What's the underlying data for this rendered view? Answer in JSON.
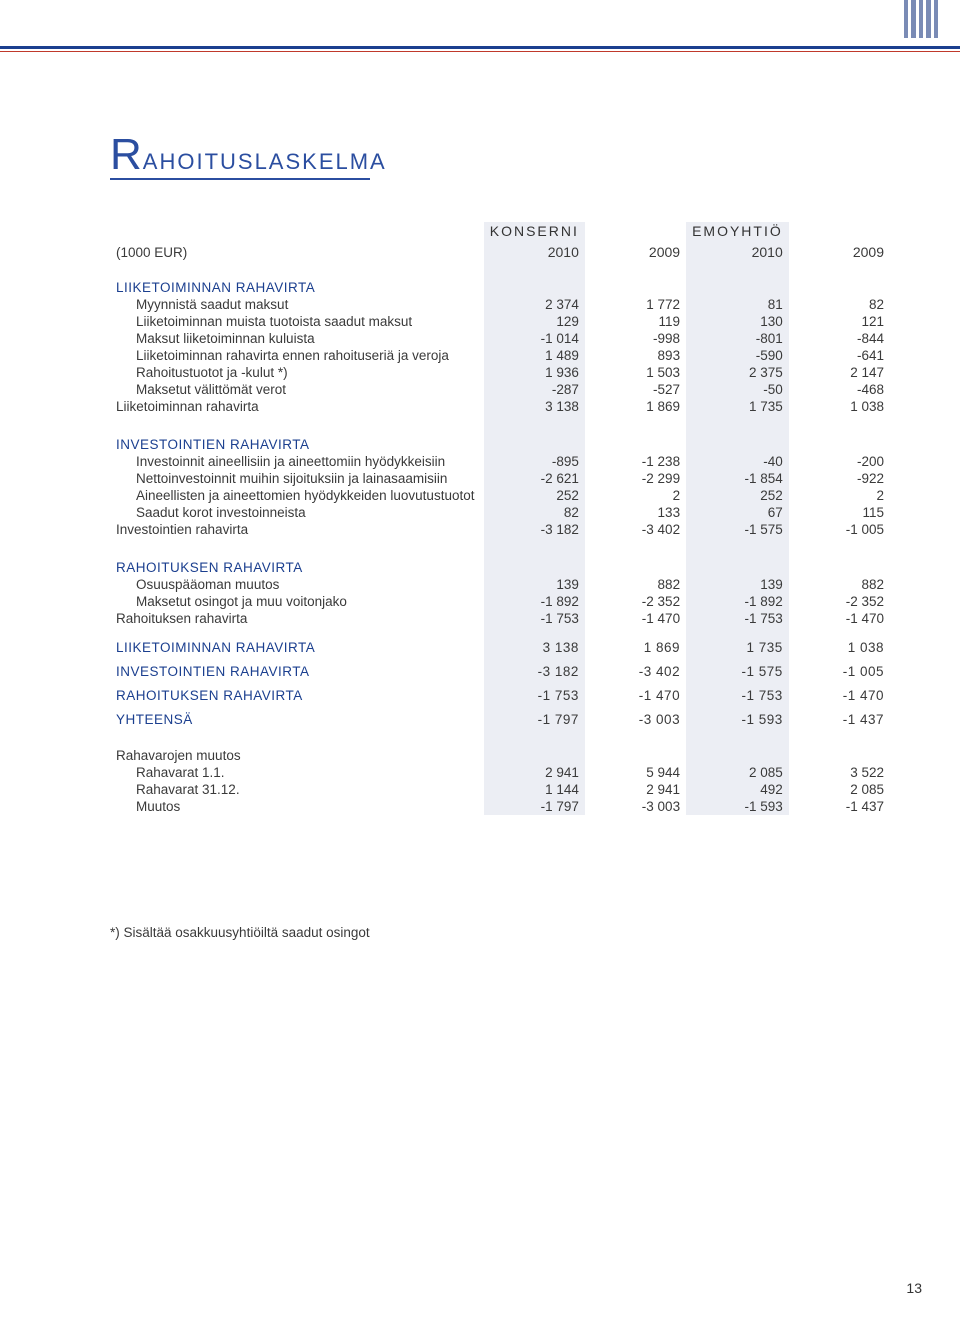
{
  "page_number": "13",
  "title_cap": "R",
  "title_rest": "AHOITUSLASKELMA",
  "group_headers": {
    "g1": "KONSERNI",
    "g2": "EMOYHTIÖ"
  },
  "first_row_label": "(1000 EUR)",
  "years": {
    "c1": "2010",
    "c2": "2009",
    "c3": "2010",
    "c4": "2009"
  },
  "footnote": "*) Sisältää osakkuusyhtiöiltä saadut osingot",
  "sections": {
    "s1": {
      "head": "LIIKETOIMINNAN RAHAVIRTA",
      "rows": {
        "r1": {
          "label": "Myynnistä saadut maksut",
          "v": [
            "2 374",
            "1 772",
            "81",
            "82"
          ]
        },
        "r2": {
          "label": "Liiketoiminnan muista tuotoista saadut maksut",
          "v": [
            "129",
            "119",
            "130",
            "121"
          ]
        },
        "r3": {
          "label": "Maksut liiketoiminnan kuluista",
          "v": [
            "-1 014",
            "-998",
            "-801",
            "-844"
          ]
        },
        "r4": {
          "label": "Liiketoiminnan rahavirta ennen rahoituseriä ja veroja",
          "v": [
            "1 489",
            "893",
            "-590",
            "-641"
          ]
        },
        "r5": {
          "label": "Rahoitustuotot ja -kulut *)",
          "v": [
            "1 936",
            "1 503",
            "2 375",
            "2 147"
          ]
        },
        "r6": {
          "label": "Maksetut välittömät verot",
          "v": [
            "-287",
            "-527",
            "-50",
            "-468"
          ]
        }
      },
      "total": {
        "label": "Liiketoiminnan rahavirta",
        "v": [
          "3 138",
          "1 869",
          "1 735",
          "1 038"
        ]
      }
    },
    "s2": {
      "head": "INVESTOINTIEN RAHAVIRTA",
      "rows": {
        "r1": {
          "label": "Investoinnit aineellisiin ja aineettomiin hyödykkeisiin",
          "v": [
            "-895",
            "-1 238",
            "-40",
            "-200"
          ]
        },
        "r2": {
          "label": "Nettoinvestoinnit muihin sijoituksiin ja lainasaamisiin",
          "v": [
            "-2 621",
            "-2 299",
            "-1 854",
            "-922"
          ]
        },
        "r3": {
          "label": "Aineellisten ja aineettomien hyödykkeiden luovutustuotot",
          "v": [
            "252",
            "2",
            "252",
            "2"
          ]
        },
        "r4": {
          "label": "Saadut korot investoinneista",
          "v": [
            "82",
            "133",
            "67",
            "115"
          ]
        }
      },
      "total": {
        "label": "Investointien rahavirta",
        "v": [
          "-3 182",
          "-3 402",
          "-1 575",
          "-1 005"
        ]
      }
    },
    "s3": {
      "head": "RAHOITUKSEN RAHAVIRTA",
      "rows": {
        "r1": {
          "label": "Osuuspääoman muutos",
          "v": [
            "139",
            "882",
            "139",
            "882"
          ]
        },
        "r2": {
          "label": "Maksetut osingot ja muu voitonjako",
          "v": [
            "-1 892",
            "-2 352",
            "-1 892",
            "-2 352"
          ]
        }
      },
      "total": {
        "label": "Rahoituksen rahavirta",
        "v": [
          "-1 753",
          "-1 470",
          "-1 753",
          "-1 470"
        ]
      }
    },
    "summary": {
      "r1": {
        "label": "LIIKETOIMINNAN RAHAVIRTA",
        "v": [
          "3 138",
          "1 869",
          "1 735",
          "1 038"
        ]
      },
      "r2": {
        "label": "INVESTOINTIEN RAHAVIRTA",
        "v": [
          "-3 182",
          "-3 402",
          "-1 575",
          "-1 005"
        ]
      },
      "r3": {
        "label": "RAHOITUKSEN RAHAVIRTA",
        "v": [
          "-1 753",
          "-1 470",
          "-1 753",
          "-1 470"
        ]
      },
      "r4": {
        "label": "YHTEENSÄ",
        "v": [
          "-1 797",
          "-3 003",
          "-1 593",
          "-1 437"
        ]
      }
    },
    "change": {
      "head": "Rahavarojen muutos",
      "rows": {
        "r1": {
          "label": "Rahavarat 1.1.",
          "v": [
            "2 941",
            "5 944",
            "2 085",
            "3 522"
          ]
        },
        "r2": {
          "label": "Rahavarat 31.12.",
          "v": [
            "1 144",
            "2 941",
            "492",
            "2 085"
          ]
        },
        "r3": {
          "label": "Muutos",
          "v": [
            "-1 797",
            "-3 003",
            "-1 593",
            "-1 437"
          ]
        }
      }
    }
  },
  "colors": {
    "brand_blue": "#2b4ea0",
    "rule_blue": "#1b3f8f",
    "rule_red": "#c0392b",
    "shade": "#eceef4",
    "ornament": "#7a8bb5"
  }
}
